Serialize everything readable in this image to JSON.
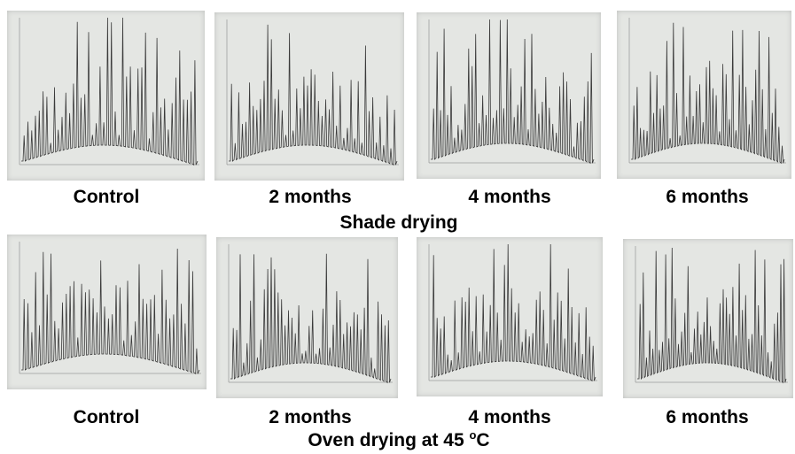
{
  "rows": [
    {
      "title": "Shade drying",
      "panels": [
        {
          "label": "Control"
        },
        {
          "label": "2 months"
        },
        {
          "label": "4 months"
        },
        {
          "label": "6 months"
        }
      ]
    },
    {
      "title": "Oven drying at 45 ",
      "title_sup": "o",
      "title_unit": "C",
      "panels": [
        {
          "label": "Control"
        },
        {
          "label": "2 months"
        },
        {
          "label": "4 months"
        },
        {
          "label": "6 months"
        }
      ]
    }
  ],
  "colors": {
    "paper": "#e4e6e3",
    "trace": "#3a3a3a",
    "text": "#000000"
  }
}
